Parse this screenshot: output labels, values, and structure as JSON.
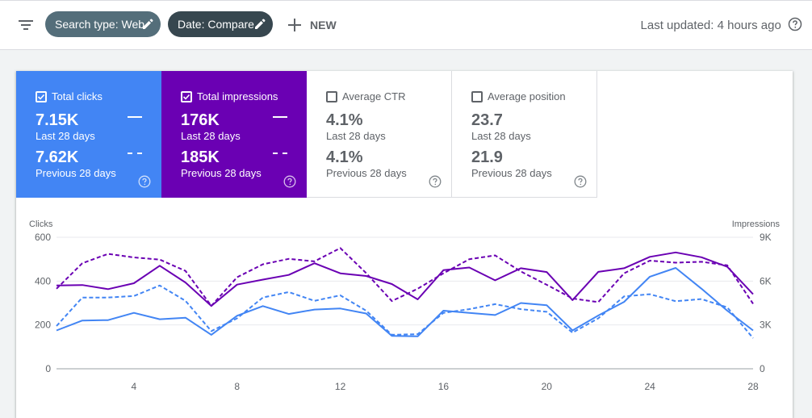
{
  "header": {
    "filter_icon": "filter-icon",
    "chips": [
      {
        "label": "Search type: Web",
        "icon": "edit-icon"
      },
      {
        "label": "Date: Compare",
        "icon": "edit-icon"
      }
    ],
    "new_label": "NEW",
    "last_updated": "Last updated: 4 hours ago"
  },
  "metrics": [
    {
      "label": "Total clicks",
      "checked": true,
      "value": "7.15K",
      "period": "Last 28 days",
      "prev_value": "7.62K",
      "prev_period": "Previous 28 days",
      "color": "#4285f4"
    },
    {
      "label": "Total impressions",
      "checked": true,
      "value": "176K",
      "period": "Last 28 days",
      "prev_value": "185K",
      "prev_period": "Previous 28 days",
      "color": "#6a00b3"
    },
    {
      "label": "Average CTR",
      "checked": false,
      "value": "4.1%",
      "period": "Last 28 days",
      "prev_value": "4.1%",
      "prev_period": "Previous 28 days",
      "color": "#ffffff"
    },
    {
      "label": "Average position",
      "checked": false,
      "value": "23.7",
      "period": "Last 28 days",
      "prev_value": "21.9",
      "prev_period": "Previous 28 days",
      "color": "#ffffff"
    }
  ],
  "chart_data": {
    "type": "line",
    "ylabel_left": "Clicks",
    "ylabel_right": "Impressions",
    "ylim_left": [
      0,
      600
    ],
    "ylim_right": [
      0,
      9000
    ],
    "yticks_left": [
      "600",
      "400",
      "200",
      "0"
    ],
    "yticks_right": [
      "9K",
      "6K",
      "3K",
      "0"
    ],
    "x": [
      1,
      2,
      3,
      4,
      5,
      6,
      7,
      8,
      9,
      10,
      11,
      12,
      13,
      14,
      15,
      16,
      17,
      18,
      19,
      20,
      21,
      22,
      23,
      24,
      25,
      26,
      27,
      28
    ],
    "xticks": [
      "4",
      "8",
      "12",
      "16",
      "20",
      "24",
      "28"
    ],
    "grid": true,
    "series": [
      {
        "axis": "left",
        "style": "solid",
        "color": "#4285f4",
        "values": [
          175,
          220,
          222,
          255,
          226,
          233,
          155,
          242,
          286,
          250,
          270,
          275,
          252,
          150,
          148,
          265,
          255,
          245,
          300,
          290,
          175,
          243,
          305,
          420,
          460,
          365,
          265,
          175
        ]
      },
      {
        "axis": "left",
        "style": "dashed",
        "color": "#4285f4",
        "values": [
          195,
          325,
          325,
          332,
          380,
          310,
          172,
          230,
          325,
          350,
          310,
          335,
          265,
          155,
          158,
          255,
          272,
          295,
          272,
          260,
          165,
          230,
          330,
          340,
          308,
          318,
          280,
          140
        ]
      },
      {
        "axis": "right",
        "style": "solid",
        "color": "#6a00b3",
        "values": [
          5700,
          5730,
          5450,
          5850,
          7050,
          5900,
          4300,
          5760,
          6100,
          6420,
          7220,
          6530,
          6350,
          5800,
          4750,
          6750,
          6930,
          6050,
          6880,
          6620,
          4700,
          6630,
          6880,
          7660,
          7960,
          7630,
          6980,
          5100
        ]
      },
      {
        "axis": "right",
        "style": "dashed",
        "color": "#6a00b3",
        "values": [
          5480,
          7220,
          7860,
          7620,
          7470,
          6700,
          4300,
          6260,
          7150,
          7520,
          7350,
          8260,
          6550,
          4630,
          5480,
          6530,
          7500,
          7760,
          6660,
          5750,
          4810,
          4560,
          6530,
          7400,
          7260,
          7320,
          7080,
          4450
        ]
      }
    ]
  }
}
